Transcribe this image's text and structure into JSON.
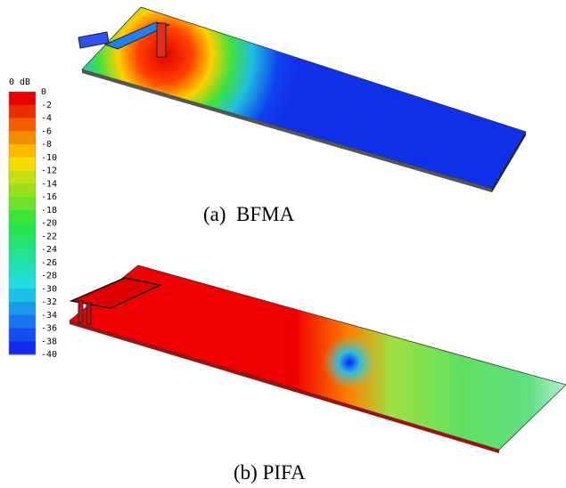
{
  "colorbar": {
    "title": "0 dB",
    "ticks": [
      0,
      -2,
      -4,
      -6,
      -8,
      -10,
      -12,
      -14,
      -16,
      -18,
      -20,
      -22,
      -24,
      -26,
      -28,
      -30,
      -32,
      -34,
      -36,
      -38,
      -40
    ]
  },
  "panels": [
    {
      "caption": "(a)  BFMA"
    },
    {
      "caption": "(b) PIFA"
    }
  ]
}
